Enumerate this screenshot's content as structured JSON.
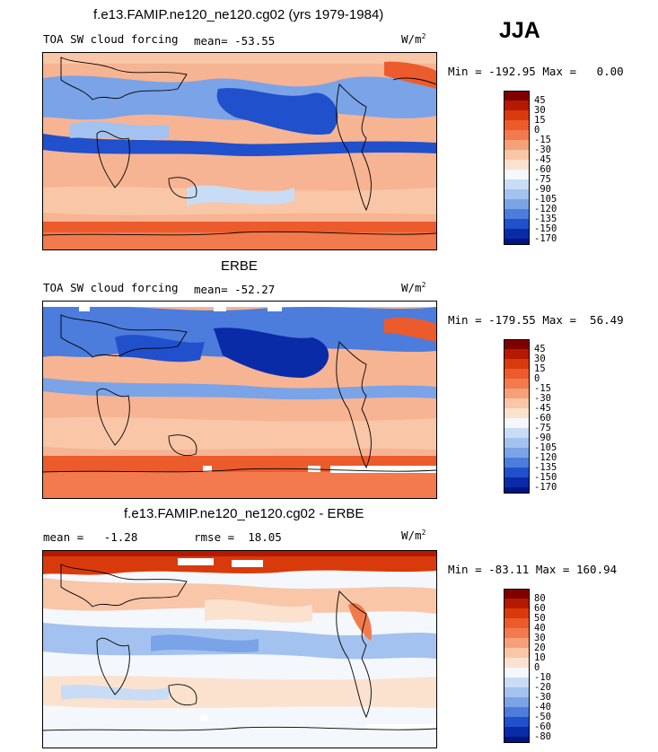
{
  "season": "JJA",
  "panels": [
    {
      "title": "f.e13.FAMIP.ne120_ne120.cg02 (yrs 1979-1984)",
      "left_label": "TOA SW cloud forcing",
      "center_label": "mean= -53.55",
      "units_text": "W/m",
      "units_sup": "2",
      "minmax": "Min = -192.95 Max =   0.00",
      "colorbar_labels": [
        "45",
        "30",
        "15",
        "0",
        "-15",
        "-30",
        "-45",
        "-60",
        "-75",
        "-90",
        "-105",
        "-120",
        "-135",
        "-150",
        "-170"
      ]
    },
    {
      "title": "ERBE",
      "left_label": "TOA SW cloud forcing",
      "center_label": "mean= -52.27",
      "units_text": "W/m",
      "units_sup": "2",
      "minmax": "Min = -179.55 Max =  56.49",
      "colorbar_labels": [
        "45",
        "30",
        "15",
        "0",
        "-15",
        "-30",
        "-45",
        "-60",
        "-75",
        "-90",
        "-105",
        "-120",
        "-135",
        "-150",
        "-170"
      ]
    },
    {
      "title": "f.e13.FAMIP.ne120_ne120.cg02 - ERBE",
      "left_label": "mean =   -1.28",
      "center_label": "rmse =  18.05",
      "units_text": "W/m",
      "units_sup": "2",
      "minmax": "Min = -83.11 Max = 160.94",
      "colorbar_labels": [
        "80",
        "60",
        "50",
        "40",
        "30",
        "20",
        "10",
        "0",
        "-10",
        "-20",
        "-30",
        "-40",
        "-50",
        "-60",
        "-80"
      ]
    }
  ],
  "colors": {
    "colorbar": [
      "#800000",
      "#b51a00",
      "#d93a0c",
      "#ec5b2c",
      "#f27a4c",
      "#f6a07a",
      "#f9c6a8",
      "#fbe2cf",
      "#f4f7fb",
      "#c8dcf5",
      "#a3c2ef",
      "#7ba3e7",
      "#4c7cdc",
      "#2050cc",
      "#0a2ba8",
      "#001580"
    ]
  },
  "chart_data": [
    {
      "type": "heatmap",
      "title": "f.e13.FAMIP.ne120_ne120.cg02 (yrs 1979-1984)",
      "variable": "TOA SW cloud forcing",
      "units": "W/m2",
      "season": "JJA",
      "mean": -53.55,
      "min": -192.95,
      "max": 0.0,
      "levels": [
        -170,
        -150,
        -135,
        -120,
        -105,
        -90,
        -75,
        -60,
        -45,
        -30,
        -15,
        0,
        15,
        30,
        45
      ]
    },
    {
      "type": "heatmap",
      "title": "ERBE",
      "variable": "TOA SW cloud forcing",
      "units": "W/m2",
      "season": "JJA",
      "mean": -52.27,
      "min": -179.55,
      "max": 56.49,
      "levels": [
        -170,
        -150,
        -135,
        -120,
        -105,
        -90,
        -75,
        -60,
        -45,
        -30,
        -15,
        0,
        15,
        30,
        45
      ]
    },
    {
      "type": "heatmap",
      "title": "f.e13.FAMIP.ne120_ne120.cg02 - ERBE",
      "variable": "difference",
      "units": "W/m2",
      "season": "JJA",
      "mean": -1.28,
      "rmse": 18.05,
      "min": -83.11,
      "max": 160.94,
      "levels": [
        -80,
        -60,
        -50,
        -40,
        -30,
        -20,
        -10,
        0,
        10,
        20,
        30,
        40,
        50,
        60,
        80
      ]
    }
  ]
}
